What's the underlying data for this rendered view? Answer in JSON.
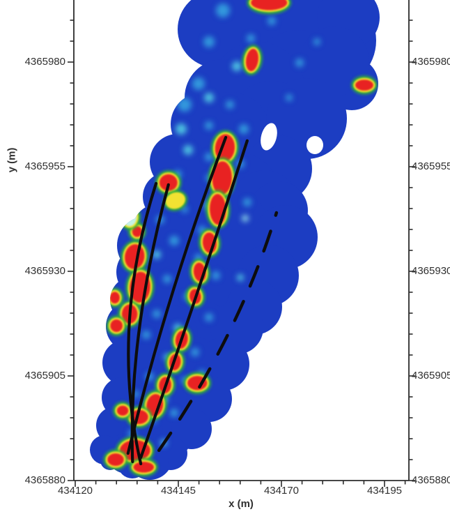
{
  "chart_data": {
    "type": "heatmap",
    "title": "",
    "xlabel": "x (m)",
    "ylabel": "y (m)",
    "xlim": [
      434119.7,
      434201.0
    ],
    "ylim": [
      4365880,
      4365994.8
    ],
    "grid": false,
    "legend": "none",
    "y_axis_labels_both_sides": true,
    "colormap": "jet-style (deep blue low, cyan/green mid, yellow/red high)",
    "colors": {
      "background": "#ffffff",
      "base_low": "#1c3dc2",
      "speckle_soft": "#2b6bd4",
      "speckle_sky": "#35a8e2",
      "speckle_cyan": "#55d8e6",
      "speckle_pale": "#9ff0ee",
      "ring_green": "#33b233",
      "ring_yellow": "#f2e230",
      "hot_red": "#e82222",
      "overlay_line": "#0d0d0d",
      "axis": "#2b2b2b"
    },
    "x_major_ticks": [
      434120,
      434145,
      434170,
      434195
    ],
    "x_tick_labels": [
      "434120",
      "434145",
      "434170",
      "434195"
    ],
    "y_major_ticks": [
      4365980,
      4365955,
      4365930,
      4365905,
      4365880
    ],
    "y_tick_labels": [
      "4365980",
      "4365955",
      "4365930",
      "4365905",
      "4365880"
    ],
    "minor_tick_step_m": 5,
    "hotspots": [
      {
        "x": 434167.0,
        "y": 4365994.2,
        "rx": 4.4,
        "ry": 1.8,
        "rot": 0,
        "peak": "red"
      },
      {
        "x": 434162.9,
        "y": 4365980.5,
        "rx": 1.5,
        "ry": 2.7,
        "rot": 8,
        "peak": "red"
      },
      {
        "x": 434190.1,
        "y": 4365974.5,
        "rx": 2.2,
        "ry": 1.3,
        "rot": 0,
        "peak": "red"
      },
      {
        "x": 434156.3,
        "y": 4365959.5,
        "rx": 2.4,
        "ry": 3.3,
        "rot": 5,
        "peak": "red"
      },
      {
        "x": 434155.6,
        "y": 4365952.3,
        "rx": 2.4,
        "ry": 4.0,
        "rot": 2,
        "peak": "red"
      },
      {
        "x": 434154.6,
        "y": 4365944.8,
        "rx": 2.0,
        "ry": 3.7,
        "rot": -2,
        "peak": "red"
      },
      {
        "x": 434152.6,
        "y": 4365936.8,
        "rx": 1.7,
        "ry": 2.5,
        "rot": -6,
        "peak": "red"
      },
      {
        "x": 434150.2,
        "y": 4365929.8,
        "rx": 1.5,
        "ry": 2.3,
        "rot": -8,
        "peak": "red"
      },
      {
        "x": 434149.1,
        "y": 4365924.0,
        "rx": 1.4,
        "ry": 1.8,
        "rot": -8,
        "peak": "red"
      },
      {
        "x": 434142.6,
        "y": 4365951.2,
        "rx": 2.2,
        "ry": 2.0,
        "rot": 0,
        "peak": "red"
      },
      {
        "x": 434144.3,
        "y": 4365946.9,
        "rx": 2.0,
        "ry": 1.5,
        "rot": -20,
        "peak": "yellow"
      },
      {
        "x": 434134.4,
        "y": 4365933.5,
        "rx": 2.4,
        "ry": 3.0,
        "rot": 8,
        "peak": "red"
      },
      {
        "x": 434135.7,
        "y": 4365926.2,
        "rx": 2.5,
        "ry": 3.7,
        "rot": 4,
        "peak": "red"
      },
      {
        "x": 434133.2,
        "y": 4365919.8,
        "rx": 1.9,
        "ry": 2.3,
        "rot": 0,
        "peak": "red"
      },
      {
        "x": 434130.0,
        "y": 4365917.0,
        "rx": 1.5,
        "ry": 1.5,
        "rot": 0,
        "peak": "red"
      },
      {
        "x": 434145.8,
        "y": 4365913.7,
        "rx": 1.5,
        "ry": 2.2,
        "rot": 10,
        "peak": "red"
      },
      {
        "x": 434144.2,
        "y": 4365908.3,
        "rx": 1.4,
        "ry": 2.0,
        "rot": 8,
        "peak": "red"
      },
      {
        "x": 434149.6,
        "y": 4365903.3,
        "rx": 2.4,
        "ry": 1.7,
        "rot": 0,
        "peak": "red"
      },
      {
        "x": 434141.8,
        "y": 4365902.8,
        "rx": 1.5,
        "ry": 2.0,
        "rot": 6,
        "peak": "red"
      },
      {
        "x": 434139.3,
        "y": 4365898.0,
        "rx": 2.0,
        "ry": 2.7,
        "rot": 10,
        "peak": "red"
      },
      {
        "x": 434135.5,
        "y": 4365895.2,
        "rx": 2.2,
        "ry": 1.7,
        "rot": 0,
        "peak": "red"
      },
      {
        "x": 434131.5,
        "y": 4365896.7,
        "rx": 1.4,
        "ry": 1.2,
        "rot": 0,
        "peak": "red"
      },
      {
        "x": 434134.5,
        "y": 4365887.2,
        "rx": 3.7,
        "ry": 2.5,
        "rot": 0,
        "peak": "red"
      },
      {
        "x": 434129.8,
        "y": 4365885.0,
        "rx": 2.0,
        "ry": 1.5,
        "rot": 0,
        "peak": "red"
      },
      {
        "x": 434136.6,
        "y": 4365883.2,
        "rx": 2.5,
        "ry": 1.3,
        "rot": 0,
        "peak": "red"
      },
      {
        "x": 434129.6,
        "y": 4365923.7,
        "rx": 1.2,
        "ry": 1.4,
        "rot": 0,
        "peak": "red"
      },
      {
        "x": 434135.0,
        "y": 4365939.5,
        "rx": 1.2,
        "ry": 1.3,
        "rot": 0,
        "peak": "red"
      },
      {
        "x": 434133.2,
        "y": 4365943.0,
        "rx": 1.7,
        "ry": 2.2,
        "rot": 0,
        "peak": "pale"
      }
    ],
    "overlay_lines": [
      {
        "style": "solid",
        "start": {
          "x": 434135.9,
          "y": 4365884.0
        },
        "ctrl": {
          "x": 434128.4,
          "y": 4365916.5
        },
        "end": {
          "x": 434139.6,
          "y": 4365951.0
        }
      },
      {
        "style": "solid",
        "start": {
          "x": 434133.9,
          "y": 4365884.5
        },
        "ctrl": {
          "x": 434132.8,
          "y": 4365914.8
        },
        "end": {
          "x": 434142.6,
          "y": 4365950.7
        }
      },
      {
        "style": "solid",
        "start": {
          "x": 434132.8,
          "y": 4365886.5
        },
        "ctrl": {
          "x": 434142.3,
          "y": 4365924.8
        },
        "end": {
          "x": 434156.5,
          "y": 4365962.0
        }
      },
      {
        "style": "solid",
        "start": {
          "x": 434135.9,
          "y": 4365885.5
        },
        "ctrl": {
          "x": 434149.4,
          "y": 4365923.5
        },
        "end": {
          "x": 434161.7,
          "y": 4365961.2
        }
      },
      {
        "style": "dashed",
        "start": {
          "x": 434140.3,
          "y": 4365887.2
        },
        "ctrl": {
          "x": 434160.0,
          "y": 4365915.2
        },
        "end": {
          "x": 434168.8,
          "y": 4365944.0
        }
      }
    ]
  }
}
